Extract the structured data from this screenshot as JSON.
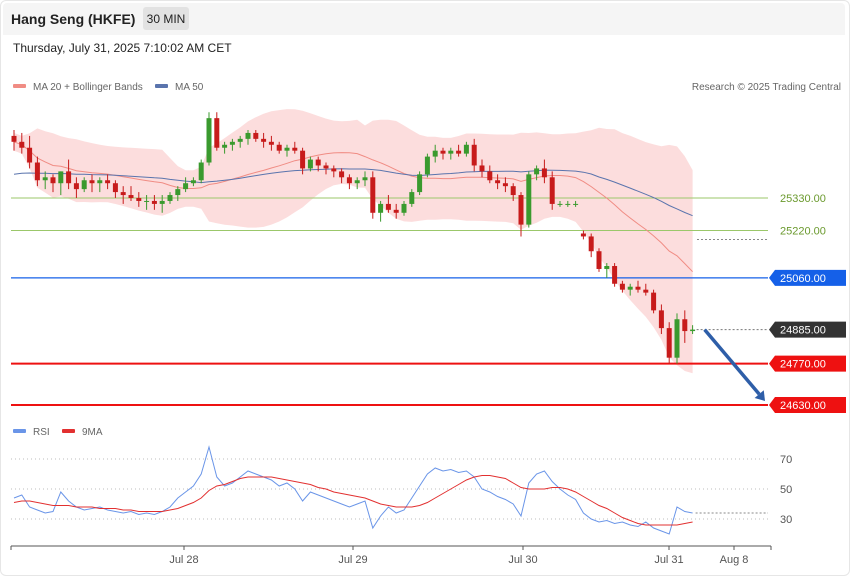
{
  "header": {
    "instrument": "Hang Seng (HKFE)",
    "timeframe": "30 MIN",
    "datetime": "Thursday, July 31, 2025 7:10:02 AM CET"
  },
  "legend": {
    "ma20": "MA 20 + Bollinger Bands",
    "ma50": "MA 50",
    "credit": "Research © 2025 Trading Central",
    "rsi": "RSI",
    "rsi_ma": "9MA"
  },
  "colors": {
    "bollinger_fill": "#fbd7d7",
    "ma20": "#f08c84",
    "ma50": "#5a74ad",
    "up_candle": "#3a9a2e",
    "down_candle": "#c71b1b",
    "resistance_green": "#9bc76a",
    "pivot_blue": "#1560e8",
    "support_red": "#ee1111",
    "last_price": "#333333",
    "rsi_line": "#6a95e8",
    "rsi_ma_line": "#e23030",
    "arrow": "#2e5ea8"
  },
  "chart_data": [
    {
      "type": "candlestick",
      "title": "Hang Seng (HKFE)",
      "interval": "30 MIN",
      "y_range": [
        24570,
        25800
      ],
      "x_labels": [
        "Jul 28",
        "Jul 29",
        "Jul 30",
        "Jul 31",
        "Aug 8"
      ],
      "levels": [
        {
          "value": 25330,
          "label": "25330.00",
          "kind": "resistance"
        },
        {
          "value": 25220,
          "label": "25220.00",
          "kind": "resistance"
        },
        {
          "value": 25060,
          "label": "25060.00",
          "kind": "pivot"
        },
        {
          "value": 24885,
          "label": "24885.00",
          "kind": "last"
        },
        {
          "value": 24770,
          "label": "24770.00",
          "kind": "support"
        },
        {
          "value": 24630,
          "label": "24630.00",
          "kind": "support"
        }
      ],
      "candles": [
        [
          25540,
          25560,
          25490,
          25520
        ],
        [
          25520,
          25550,
          25480,
          25500
        ],
        [
          25500,
          25540,
          25430,
          25450
        ],
        [
          25450,
          25470,
          25370,
          25390
        ],
        [
          25390,
          25420,
          25360,
          25400
        ],
        [
          25400,
          25410,
          25350,
          25380
        ],
        [
          25380,
          25420,
          25340,
          25420
        ],
        [
          25420,
          25460,
          25360,
          25380
        ],
        [
          25380,
          25400,
          25330,
          25360
        ],
        [
          25360,
          25400,
          25350,
          25390
        ],
        [
          25390,
          25410,
          25350,
          25380
        ],
        [
          25380,
          25400,
          25350,
          25390
        ],
        [
          25390,
          25410,
          25360,
          25380
        ],
        [
          25380,
          25390,
          25330,
          25350
        ],
        [
          25350,
          25370,
          25310,
          25340
        ],
        [
          25340,
          25370,
          25320,
          25330
        ],
        [
          25330,
          25350,
          25300,
          25320
        ],
        [
          25320,
          25340,
          25290,
          25320
        ],
        [
          25320,
          25340,
          25290,
          25310
        ],
        [
          25310,
          25340,
          25280,
          25320
        ],
        [
          25320,
          25350,
          25310,
          25340
        ],
        [
          25340,
          25370,
          25320,
          25360
        ],
        [
          25360,
          25400,
          25350,
          25380
        ],
        [
          25380,
          25400,
          25370,
          25390
        ],
        [
          25390,
          25460,
          25380,
          25450
        ],
        [
          25450,
          25620,
          25440,
          25600
        ],
        [
          25600,
          25620,
          25490,
          25500
        ],
        [
          25500,
          25520,
          25480,
          25510
        ],
        [
          25510,
          25530,
          25490,
          25520
        ],
        [
          25520,
          25540,
          25500,
          25530
        ],
        [
          25530,
          25560,
          25510,
          25550
        ],
        [
          25550,
          25560,
          25520,
          25530
        ],
        [
          25530,
          25550,
          25500,
          25520
        ],
        [
          25520,
          25540,
          25490,
          25510
        ],
        [
          25510,
          25520,
          25480,
          25490
        ],
        [
          25490,
          25510,
          25470,
          25500
        ],
        [
          25500,
          25520,
          25480,
          25490
        ],
        [
          25490,
          25500,
          25410,
          25430
        ],
        [
          25430,
          25470,
          25420,
          25460
        ],
        [
          25460,
          25470,
          25420,
          25440
        ],
        [
          25440,
          25450,
          25410,
          25430
        ],
        [
          25430,
          25440,
          25400,
          25420
        ],
        [
          25420,
          25430,
          25380,
          25400
        ],
        [
          25400,
          25410,
          25360,
          25380
        ],
        [
          25380,
          25400,
          25360,
          25390
        ],
        [
          25390,
          25420,
          25370,
          25400
        ],
        [
          25400,
          25420,
          25260,
          25280
        ],
        [
          25280,
          25320,
          25250,
          25310
        ],
        [
          25310,
          25340,
          25280,
          25290
        ],
        [
          25290,
          25310,
          25260,
          25280
        ],
        [
          25280,
          25320,
          25270,
          25310
        ],
        [
          25310,
          25360,
          25300,
          25350
        ],
        [
          25350,
          25420,
          25340,
          25410
        ],
        [
          25410,
          25480,
          25400,
          25470
        ],
        [
          25470,
          25510,
          25450,
          25490
        ],
        [
          25490,
          25500,
          25460,
          25480
        ],
        [
          25480,
          25500,
          25460,
          25490
        ],
        [
          25490,
          25510,
          25470,
          25480
        ],
        [
          25480,
          25520,
          25470,
          25510
        ],
        [
          25510,
          25530,
          25420,
          25440
        ],
        [
          25440,
          25460,
          25400,
          25420
        ],
        [
          25420,
          25440,
          25380,
          25390
        ],
        [
          25390,
          25410,
          25360,
          25380
        ],
        [
          25380,
          25400,
          25350,
          25370
        ],
        [
          25370,
          25380,
          25320,
          25340
        ],
        [
          25340,
          25350,
          25200,
          25240
        ],
        [
          25240,
          25420,
          25230,
          25410
        ],
        [
          25410,
          25440,
          25390,
          25430
        ],
        [
          25430,
          25460,
          25380,
          25400
        ],
        [
          25400,
          25420,
          25290,
          25310
        ],
        [
          25310,
          25320,
          25300,
          25310
        ],
        [
          25310,
          25320,
          25300,
          25310
        ],
        [
          25310,
          25320,
          25300,
          25310
        ],
        [
          25210,
          25220,
          25190,
          25200
        ],
        [
          25200,
          25210,
          25130,
          25150
        ],
        [
          25150,
          25160,
          25080,
          25090
        ],
        [
          25090,
          25110,
          25060,
          25100
        ],
        [
          25100,
          25110,
          25030,
          25040
        ],
        [
          25040,
          25050,
          25010,
          25020
        ],
        [
          25020,
          25040,
          25000,
          25030
        ],
        [
          25030,
          25050,
          25010,
          25020
        ],
        [
          25020,
          25040,
          25000,
          25010
        ],
        [
          25010,
          25020,
          24940,
          24950
        ],
        [
          24950,
          24970,
          24870,
          24890
        ],
        [
          24890,
          24910,
          24770,
          24790
        ],
        [
          24790,
          24940,
          24770,
          24920
        ],
        [
          24920,
          24950,
          24840,
          24880
        ],
        [
          24880,
          24900,
          24870,
          24885
        ]
      ]
    },
    {
      "type": "line",
      "title": "RSI",
      "y_ticks": [
        70,
        50,
        30
      ],
      "y_range": [
        10,
        85
      ],
      "series": [
        {
          "name": "RSI",
          "values": [
            44,
            46,
            38,
            36,
            34,
            35,
            48,
            42,
            38,
            36,
            37,
            38,
            36,
            35,
            34,
            35,
            33,
            34,
            33,
            35,
            38,
            44,
            48,
            52,
            60,
            78,
            58,
            52,
            54,
            58,
            62,
            60,
            58,
            56,
            52,
            54,
            50,
            42,
            48,
            46,
            44,
            42,
            40,
            38,
            40,
            42,
            24,
            32,
            38,
            34,
            36,
            44,
            52,
            60,
            64,
            62,
            63,
            61,
            62,
            58,
            50,
            48,
            45,
            43,
            40,
            32,
            54,
            60,
            62,
            55,
            50,
            46,
            43,
            34,
            30,
            28,
            29,
            27,
            28,
            26,
            25,
            28,
            24,
            22,
            20,
            38,
            35,
            34
          ]
        },
        {
          "name": "9MA",
          "values": [
            41,
            42,
            42,
            41,
            40,
            39,
            39,
            39,
            38,
            38,
            38,
            37,
            37,
            37,
            36,
            36,
            35,
            35,
            35,
            35,
            36,
            37,
            39,
            41,
            44,
            49,
            52,
            53,
            55,
            57,
            58,
            58,
            58,
            58,
            57,
            56,
            55,
            54,
            53,
            51,
            50,
            48,
            47,
            46,
            45,
            44,
            42,
            40,
            39,
            38,
            38,
            38,
            39,
            41,
            44,
            47,
            50,
            53,
            56,
            58,
            59,
            59,
            58,
            57,
            54,
            51,
            50,
            50,
            50,
            51,
            51,
            50,
            48,
            45,
            42,
            39,
            37,
            34,
            31,
            29,
            27,
            26,
            26,
            26,
            26,
            26,
            27,
            28
          ]
        }
      ]
    }
  ]
}
